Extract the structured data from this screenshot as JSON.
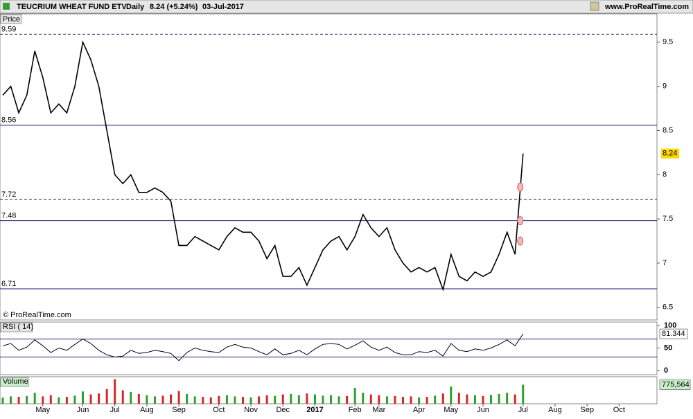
{
  "chart_data": {
    "type": "line",
    "title": "TEUCRIUM WHEAT FUND ETV",
    "period": "Daily",
    "change": "8.24 (+5.24%)",
    "date": "03-Jul-2017",
    "site": "www.ProRealTime.com",
    "copyright": "© ProRealTime.com",
    "categories": [
      null,
      null,
      null,
      null,
      null,
      "May",
      null,
      null,
      null,
      null,
      "Jun",
      null,
      null,
      null,
      "Jul",
      null,
      null,
      null,
      "Aug",
      null,
      null,
      null,
      "Sep",
      null,
      null,
      null,
      null,
      "Oct",
      null,
      null,
      null,
      "Nov",
      null,
      null,
      null,
      "Dec",
      null,
      null,
      null,
      "2017",
      null,
      null,
      null,
      null,
      "Feb",
      null,
      null,
      "Mar",
      null,
      null,
      null,
      null,
      "Apr",
      null,
      null,
      null,
      "May",
      null,
      null,
      null,
      "Jun",
      null,
      null,
      null,
      null,
      "Jul",
      null,
      null,
      null,
      "Aug",
      null,
      null,
      null,
      "Sep",
      null,
      null,
      null,
      "Oct",
      null,
      null,
      null,
      null
    ],
    "price": {
      "label": "Price",
      "color": "#000000",
      "values": [
        8.9,
        9.0,
        8.7,
        8.9,
        9.4,
        9.1,
        8.7,
        8.8,
        8.7,
        9.0,
        9.5,
        9.3,
        9.0,
        8.5,
        8.0,
        7.9,
        8.0,
        7.8,
        7.8,
        7.85,
        7.8,
        7.7,
        7.2,
        7.2,
        7.3,
        7.25,
        7.2,
        7.15,
        7.3,
        7.4,
        7.35,
        7.35,
        7.25,
        7.05,
        7.2,
        6.85,
        6.85,
        6.95,
        6.75,
        6.95,
        7.15,
        7.25,
        7.3,
        7.15,
        7.3,
        7.55,
        7.4,
        7.3,
        7.4,
        7.15,
        7.0,
        6.9,
        6.95,
        6.9,
        6.95,
        6.7,
        7.1,
        6.85,
        6.8,
        6.9,
        6.85,
        6.9,
        7.1,
        7.35,
        7.1,
        8.24,
        null,
        null,
        null,
        null,
        null,
        null,
        null,
        null,
        null,
        null,
        null,
        null,
        null,
        null,
        null,
        null
      ],
      "ylim": [
        6.357,
        9.82
      ],
      "yticks": [
        6.5,
        7,
        7.5,
        8,
        8.5,
        9,
        9.5
      ],
      "levels": [
        {
          "value": 9.59,
          "dashed": true
        },
        {
          "value": 8.56,
          "dashed": false
        },
        {
          "value": 7.72,
          "dashed": true
        },
        {
          "value": 7.48,
          "dashed": false
        },
        {
          "value": 6.71,
          "dashed": false
        }
      ],
      "level_color": "#1a1a6e",
      "markers": [
        7.25,
        7.48,
        7.86
      ],
      "marker_color": "#f4b8b8",
      "last_value": 8.24,
      "last_color": "#ffd700"
    },
    "rsi": {
      "label": "RSI ( 14)",
      "color": "#000000",
      "values": [
        55,
        60,
        45,
        52,
        68,
        55,
        40,
        50,
        45,
        58,
        70,
        60,
        45,
        35,
        30,
        32,
        45,
        38,
        40,
        45,
        42,
        38,
        22,
        40,
        50,
        45,
        42,
        40,
        52,
        58,
        52,
        50,
        42,
        35,
        48,
        35,
        38,
        45,
        35,
        48,
        58,
        60,
        58,
        48,
        56,
        66,
        52,
        45,
        52,
        40,
        35,
        35,
        42,
        40,
        45,
        32,
        60,
        45,
        42,
        48,
        45,
        50,
        58,
        68,
        55,
        81.344,
        null,
        null,
        null,
        null,
        null,
        null,
        null,
        null,
        null,
        null,
        null,
        null,
        null,
        null,
        null,
        null
      ],
      "ylim": [
        0,
        100
      ],
      "yticks": [
        0,
        50,
        100
      ],
      "levels": [
        30,
        70
      ],
      "last_value": 81.344
    },
    "volume": {
      "label": "Volume",
      "up_color": "#2ca02c",
      "down_color": "#d62728",
      "values": [
        250000,
        300000,
        280000,
        320000,
        450000,
        300000,
        350000,
        260000,
        280000,
        330000,
        500000,
        380000,
        420000,
        600000,
        1000000,
        550000,
        480000,
        400000,
        350000,
        300000,
        330000,
        380000,
        520000,
        400000,
        300000,
        280000,
        260000,
        320000,
        350000,
        300000,
        280000,
        260000,
        300000,
        350000,
        320000,
        380000,
        400000,
        350000,
        420000,
        380000,
        330000,
        350000,
        300000,
        320000,
        650000,
        450000,
        380000,
        350000,
        300000,
        320000,
        280000,
        300000,
        260000,
        280000,
        330000,
        420000,
        700000,
        450000,
        380000,
        350000,
        320000,
        360000,
        400000,
        450000,
        380000,
        775564,
        null,
        null,
        null,
        null,
        null,
        null,
        null,
        null,
        null,
        null,
        null,
        null,
        null,
        null,
        null,
        null
      ],
      "ylim": [
        0,
        1100000
      ],
      "last_value": {
        "value": 775564,
        "label": "775,564"
      }
    }
  }
}
